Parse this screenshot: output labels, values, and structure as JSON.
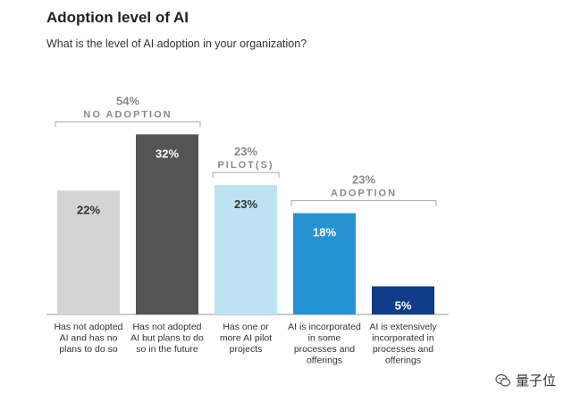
{
  "header": {
    "title": "Adoption level of AI",
    "subtitle": "What is the level of AI adoption in your organization?"
  },
  "watermark": {
    "text": "量子位"
  },
  "chart_data": {
    "type": "bar",
    "title": "Adoption level of AI",
    "subtitle": "What is the level of AI adoption in your organization?",
    "ylim": [
      0,
      35
    ],
    "xlabel": "",
    "ylabel": "",
    "categories": [
      [
        "Has not adopted",
        "AI and has no",
        "plans to do so"
      ],
      [
        "Has not adopted",
        "AI but plans to do",
        "so in the future"
      ],
      [
        "Has one or",
        "more AI pilot",
        "projects"
      ],
      [
        "AI is incorporated",
        "in some",
        "processes and",
        "offerings"
      ],
      [
        "AI is extensively",
        "incorporated in",
        "processes and",
        "offerings"
      ]
    ],
    "values": [
      22,
      32,
      23,
      18,
      5
    ],
    "value_labels": [
      "22%",
      "32%",
      "23%",
      "18%",
      "5%"
    ],
    "bar_colors": [
      "#d4d4d4",
      "#545454",
      "#bde3f2",
      "#2593d3",
      "#0f3d8a"
    ],
    "label_colors": [
      "#333333",
      "#ffffff",
      "#333333",
      "#ffffff",
      "#ffffff"
    ],
    "groups": [
      {
        "percent": "54%",
        "label": "NO ADOPTION",
        "start": 0,
        "end": 1
      },
      {
        "percent": "23%",
        "label": "PILOT(S)",
        "start": 2,
        "end": 2
      },
      {
        "percent": "23%",
        "label": "ADOPTION",
        "start": 3,
        "end": 4
      }
    ]
  }
}
